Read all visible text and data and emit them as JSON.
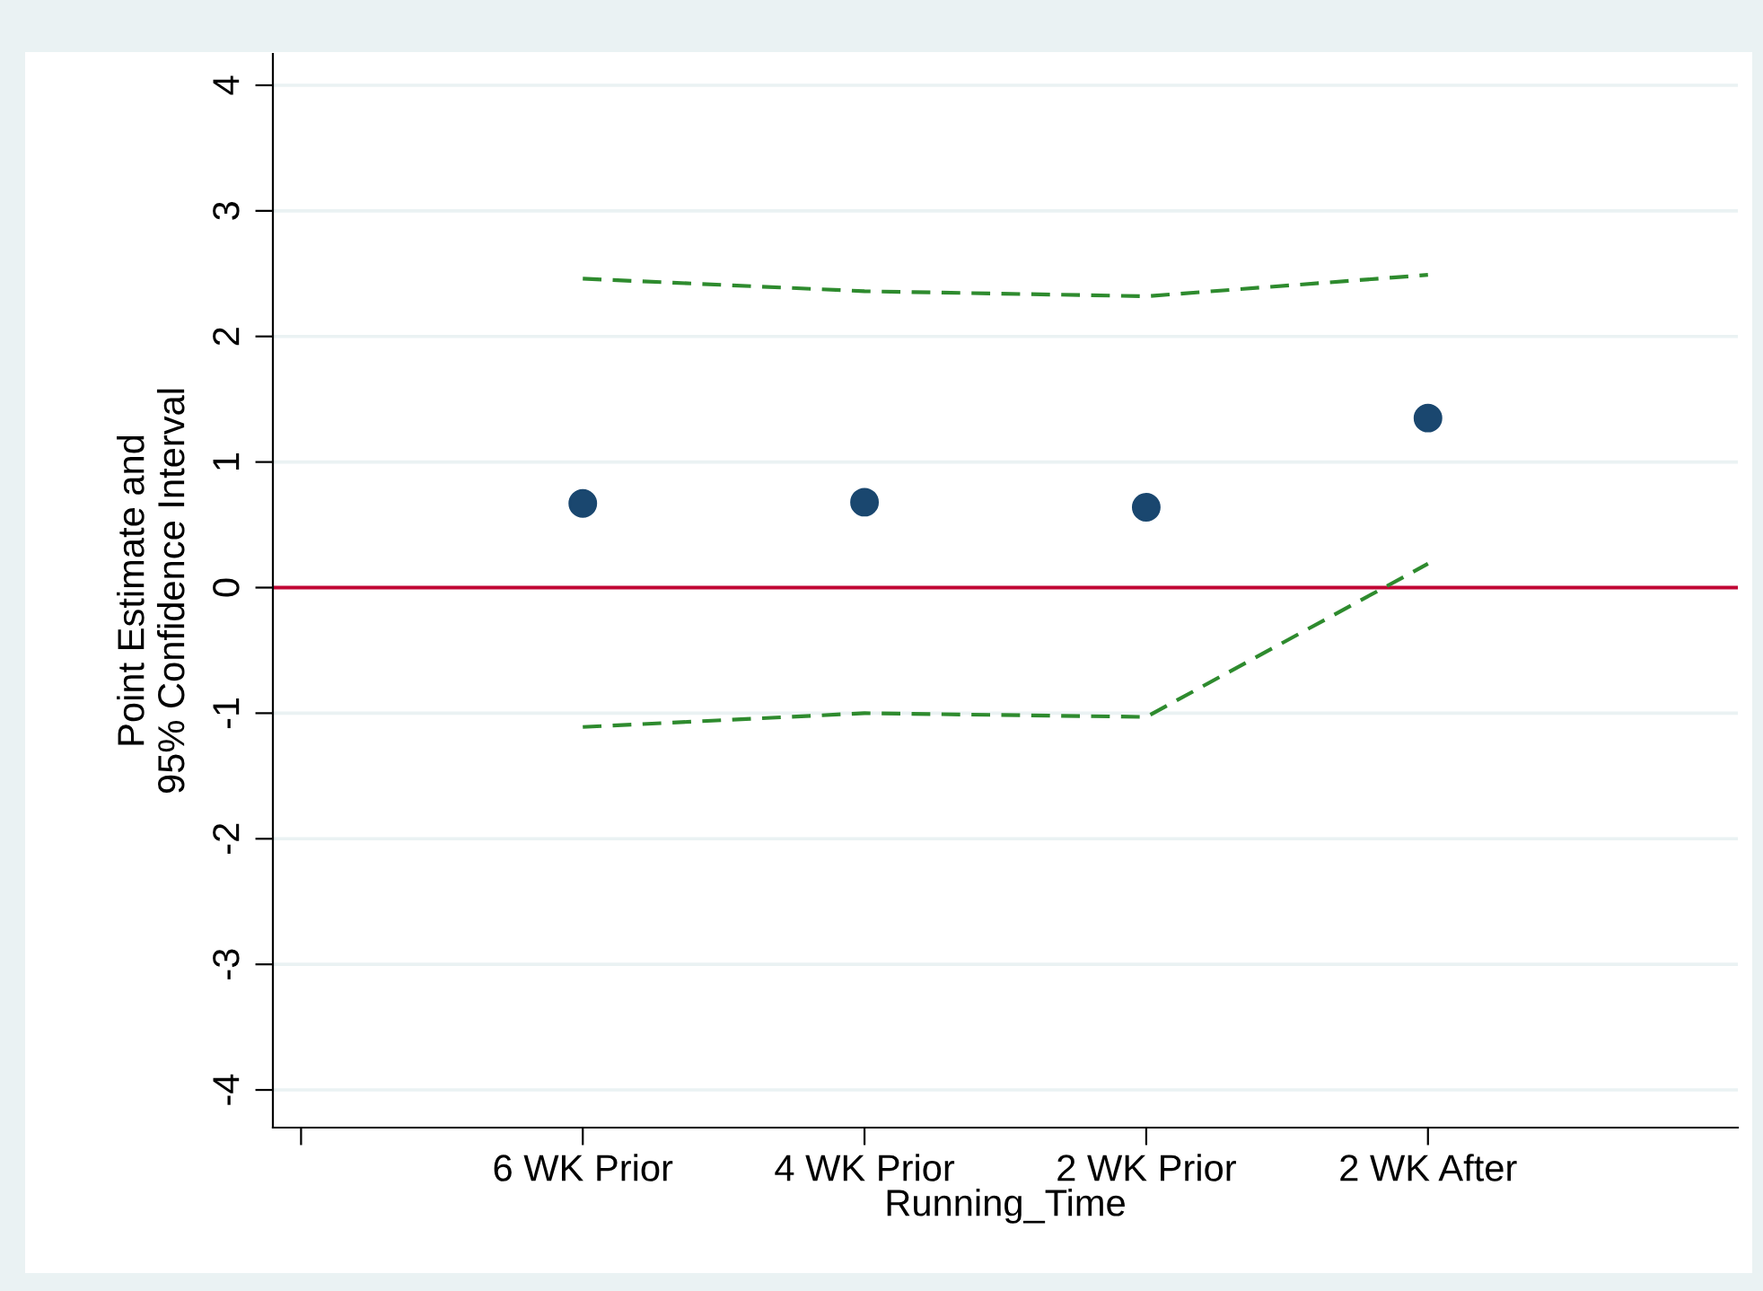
{
  "chart_data": {
    "type": "scatter",
    "xlabel": "Running_Time",
    "ylabel": "Point Estimate and\n95% Confidence Interval",
    "categories": [
      null,
      "6 WK Prior",
      "4 WK Prior",
      "2 WK Prior",
      "2 WK After"
    ],
    "ylim": [
      -4.3,
      4.25
    ],
    "yticks": [
      -4,
      -3,
      -2,
      -1,
      0,
      1,
      2,
      3,
      4
    ],
    "grid": "y",
    "series": [
      {
        "color": "#1a476f",
        "marker": "circle",
        "values": [
          null,
          0.67,
          0.68,
          0.64,
          1.35
        ]
      },
      {
        "type": "line",
        "color": "#2e8b2e",
        "line_style": "dashed",
        "marker": "none",
        "values": [
          null,
          2.46,
          2.36,
          2.32,
          2.49
        ]
      },
      {
        "type": "line",
        "color": "#2e8b2e",
        "line_style": "dashed",
        "marker": "none",
        "values": [
          null,
          -1.11,
          -1.0,
          -1.03,
          0.19
        ]
      }
    ],
    "ref_lines": [
      {
        "axis": "y",
        "value": 0,
        "color": "#c10534",
        "line_style": "solid"
      }
    ]
  }
}
